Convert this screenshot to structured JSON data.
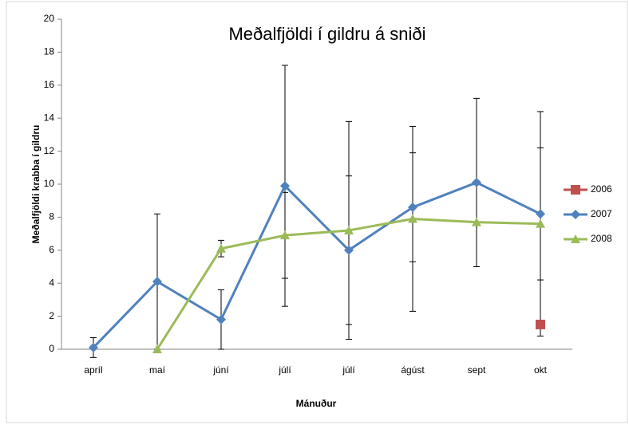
{
  "chart_data": {
    "type": "line",
    "title": "Meðalfjöldi í gildru á sniði",
    "x_label": "Mánuður",
    "y_label": "Meðalfjöldi krabba í gildru",
    "categories": [
      "apríl",
      "maí",
      "júní",
      "júlí",
      "júlí",
      "ágúst",
      "sept",
      "okt"
    ],
    "series": [
      {
        "name": "2006",
        "color": "#c0504d",
        "marker": "square",
        "values": [
          null,
          null,
          null,
          null,
          null,
          null,
          null,
          1.5
        ],
        "errors": [
          null,
          null,
          null,
          null,
          null,
          null,
          null,
          null
        ]
      },
      {
        "name": "2007",
        "color": "#4f81bd",
        "marker": "diamond",
        "values": [
          0.1,
          4.1,
          1.8,
          9.9,
          6.0,
          8.6,
          10.1,
          8.2
        ],
        "errors": [
          0.6,
          4.1,
          1.8,
          7.3,
          4.5,
          3.3,
          5.1,
          4.0
        ]
      },
      {
        "name": "2008",
        "color": "#9bbb59",
        "marker": "triangle",
        "values": [
          null,
          0.0,
          6.1,
          6.9,
          7.2,
          7.9,
          7.7,
          7.6
        ],
        "errors": [
          null,
          null,
          0.5,
          2.6,
          6.6,
          5.6,
          null,
          6.8
        ]
      }
    ],
    "ylim": [
      0,
      20
    ],
    "yticks": [
      0,
      2,
      4,
      6,
      8,
      10,
      12,
      14,
      16,
      18,
      20
    ],
    "legend": "right"
  }
}
